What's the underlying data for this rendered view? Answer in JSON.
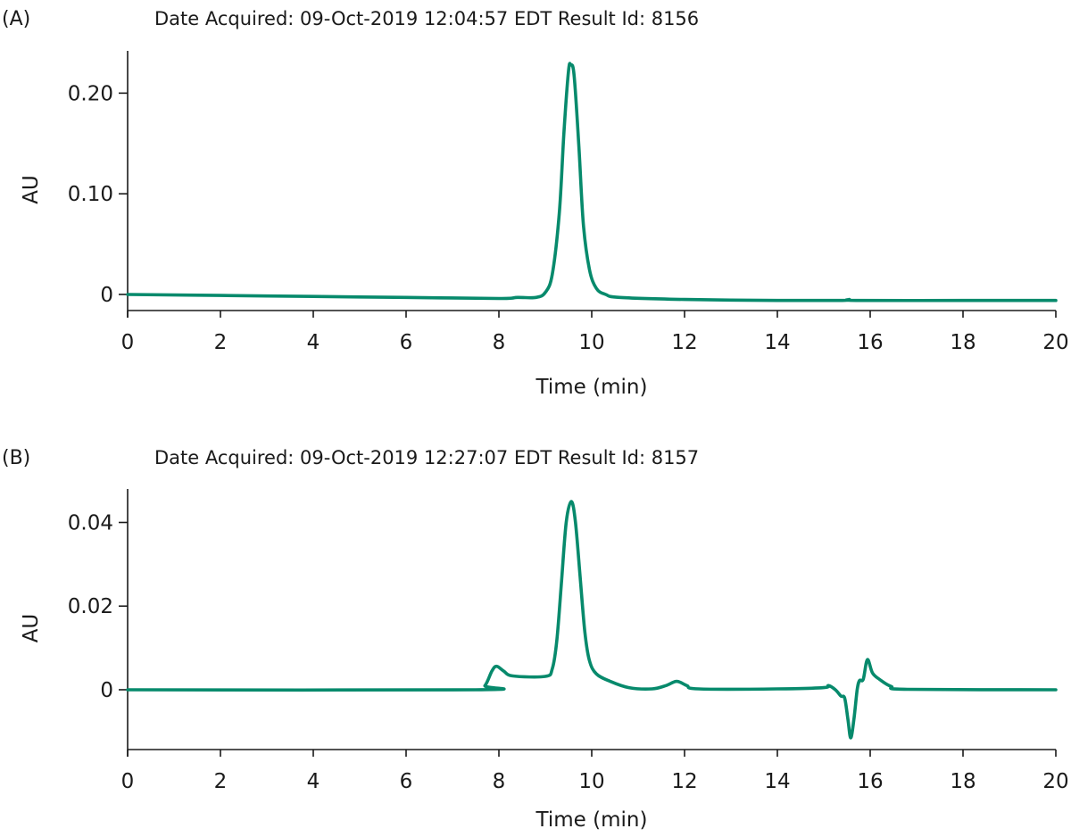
{
  "colors": {
    "trace": "#078a6c",
    "axis": "#1a1a1a"
  },
  "chart_data": [
    {
      "type": "line",
      "panel_label": "(A)",
      "title": "Date Acquired: 09-Oct-2019 12:04:57 EDT Result Id: 8156",
      "xlabel": "Time (min)",
      "ylabel": "AU",
      "xlim": [
        0,
        20
      ],
      "ylim": [
        -0.016,
        0.242
      ],
      "xticks": [
        0,
        2,
        4,
        6,
        8,
        10,
        12,
        14,
        16,
        18,
        20
      ],
      "xtick_labels": [
        "0",
        "2",
        "4",
        "6",
        "8",
        "10",
        "12",
        "14",
        "16",
        "18",
        "20"
      ],
      "yticks": [
        0,
        0.1,
        0.2
      ],
      "ytick_labels": [
        "0",
        "0.10",
        "0.20"
      ],
      "grid": false,
      "series": [
        {
          "name": "trace",
          "points": [
            [
              0,
              0
            ],
            [
              2,
              -0.001
            ],
            [
              4,
              -0.002
            ],
            [
              6,
              -0.003
            ],
            [
              8,
              -0.004
            ],
            [
              8.4,
              -0.003
            ],
            [
              8.8,
              -0.003
            ],
            [
              9.0,
              0.002
            ],
            [
              9.15,
              0.02
            ],
            [
              9.3,
              0.08
            ],
            [
              9.4,
              0.16
            ],
            [
              9.5,
              0.222
            ],
            [
              9.55,
              0.228
            ],
            [
              9.62,
              0.218
            ],
            [
              9.72,
              0.15
            ],
            [
              9.82,
              0.07
            ],
            [
              9.95,
              0.025
            ],
            [
              10.1,
              0.006
            ],
            [
              10.3,
              0
            ],
            [
              10.6,
              -0.003
            ],
            [
              12,
              -0.005
            ],
            [
              14,
              -0.006
            ],
            [
              15.4,
              -0.006
            ],
            [
              15.55,
              -0.005
            ],
            [
              15.7,
              -0.006
            ],
            [
              18,
              -0.006
            ],
            [
              20,
              -0.006
            ]
          ]
        }
      ]
    },
    {
      "type": "line",
      "panel_label": "(B)",
      "title": "Date Acquired: 09-Oct-2019 12:27:07 EDT Result Id: 8157",
      "xlabel": "Time (min)",
      "ylabel": "AU",
      "xlim": [
        0,
        20
      ],
      "ylim": [
        -0.0143,
        0.048
      ],
      "xticks": [
        0,
        2,
        4,
        6,
        8,
        10,
        12,
        14,
        16,
        18,
        20
      ],
      "xtick_labels": [
        "0",
        "2",
        "4",
        "6",
        "8",
        "10",
        "12",
        "14",
        "16",
        "18",
        "20"
      ],
      "yticks": [
        0,
        0.02,
        0.04
      ],
      "ytick_labels": [
        "0",
        "0.02",
        "0.04"
      ],
      "grid": false,
      "series": [
        {
          "name": "trace",
          "points": [
            [
              0,
              0
            ],
            [
              7.5,
              0
            ],
            [
              7.7,
              0.001
            ],
            [
              7.85,
              0.0045
            ],
            [
              7.95,
              0.0056
            ],
            [
              8.1,
              0.0045
            ],
            [
              8.3,
              0.0033
            ],
            [
              9.0,
              0.0032
            ],
            [
              9.15,
              0.005
            ],
            [
              9.25,
              0.012
            ],
            [
              9.35,
              0.026
            ],
            [
              9.45,
              0.04
            ],
            [
              9.56,
              0.045
            ],
            [
              9.65,
              0.04
            ],
            [
              9.75,
              0.027
            ],
            [
              9.85,
              0.014
            ],
            [
              9.95,
              0.007
            ],
            [
              10.1,
              0.0038
            ],
            [
              10.4,
              0.002
            ],
            [
              10.8,
              0.0005
            ],
            [
              11.3,
              0.0002
            ],
            [
              11.6,
              0.001
            ],
            [
              11.83,
              0.002
            ],
            [
              12.05,
              0.001
            ],
            [
              12.3,
              0.0002
            ],
            [
              14,
              0.0002
            ],
            [
              15.0,
              0.0005
            ],
            [
              15.1,
              0.001
            ],
            [
              15.25,
              0
            ],
            [
              15.37,
              -0.0015
            ],
            [
              15.45,
              -0.002
            ],
            [
              15.52,
              -0.007
            ],
            [
              15.58,
              -0.0115
            ],
            [
              15.65,
              -0.007
            ],
            [
              15.72,
              0
            ],
            [
              15.77,
              0.0022
            ],
            [
              15.85,
              0.0025
            ],
            [
              15.94,
              0.0072
            ],
            [
              16.05,
              0.004
            ],
            [
              16.2,
              0.0025
            ],
            [
              16.45,
              0.0008
            ],
            [
              16.8,
              0.0001
            ],
            [
              20,
              0
            ]
          ]
        }
      ]
    }
  ]
}
